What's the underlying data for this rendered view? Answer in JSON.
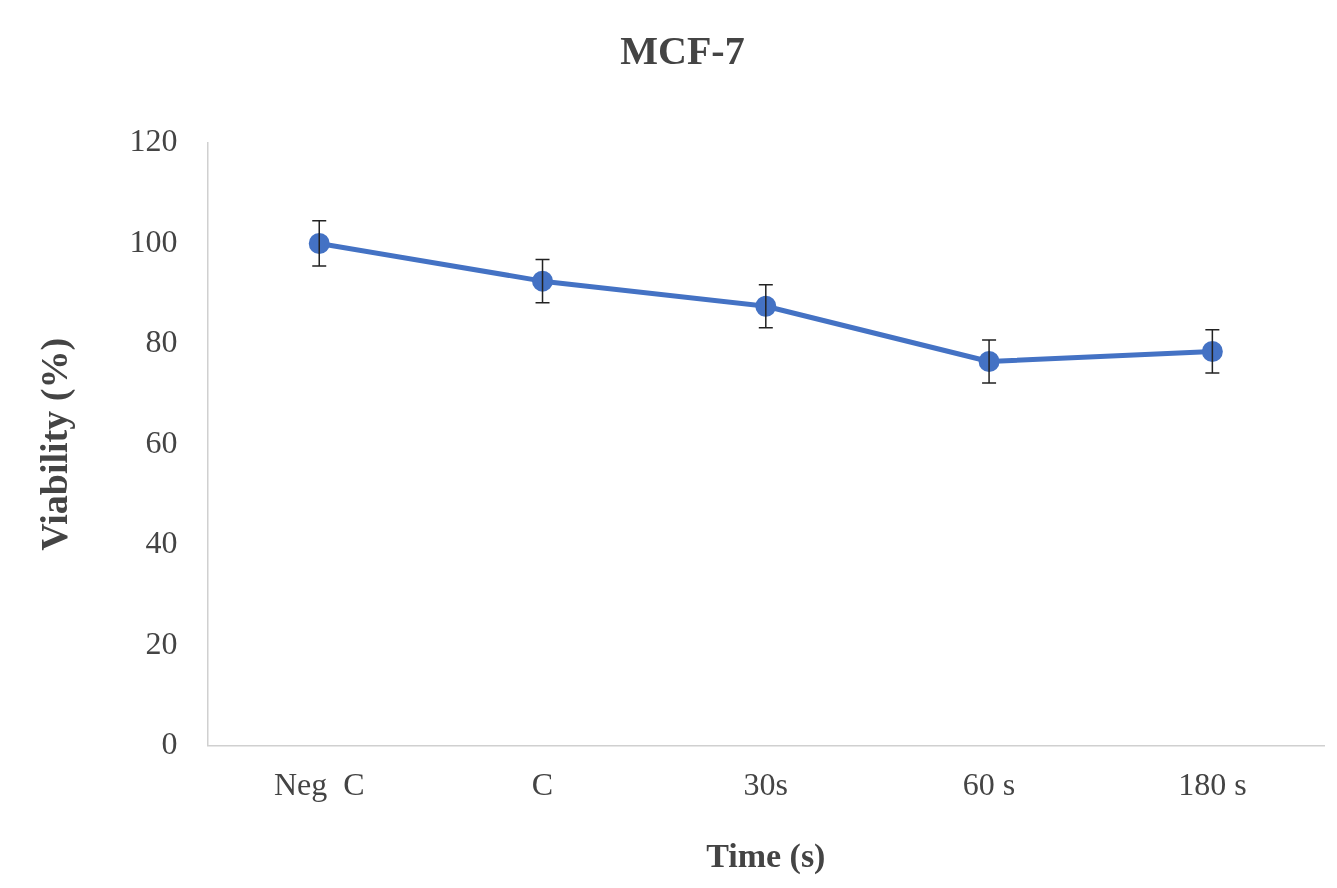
{
  "chart_data": {
    "type": "line",
    "title": "MCF-7",
    "xlabel": "Time (s)",
    "ylabel": "Viability (%)",
    "categories": [
      "Neg  C",
      "C",
      "30s",
      "60 s",
      "180 s"
    ],
    "series": [
      {
        "color": "#4472c4",
        "values": [
          100,
          92.5,
          87.5,
          76.5,
          78.5
        ],
        "errors": [
          4.5,
          4.3,
          4.3,
          4.3,
          4.3
        ]
      }
    ],
    "ylim": [
      0,
      120
    ],
    "yticks": [
      0,
      20,
      40,
      60,
      80,
      100,
      120
    ],
    "grid": false,
    "legend": false,
    "marker": "circle",
    "line_style": "solid"
  }
}
